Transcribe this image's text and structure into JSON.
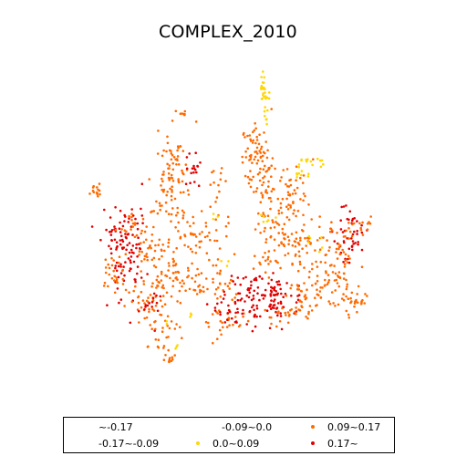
{
  "figure": {
    "title": "COMPLEX_2010"
  },
  "legend": {
    "entries": [
      {
        "label": "~-0.17",
        "color": "#8b0000",
        "visible_marker": false
      },
      {
        "label": "-0.17~-0.09",
        "color": "#b22222",
        "visible_marker": false
      },
      {
        "label": "-0.09~0.0",
        "color": "#ff8c00",
        "visible_marker": false
      },
      {
        "label": "0.0~0.09",
        "color": "#ffd700",
        "visible_marker": true
      },
      {
        "label": "0.09~0.17",
        "color": "#ff6a00",
        "visible_marker": true
      },
      {
        "label": "0.17~",
        "color": "#e00000",
        "visible_marker": true
      }
    ]
  },
  "map_colors": {
    "class_0_0_to_0_09": "#ffd700",
    "class_0_09_to_0_17": "#ff6a00",
    "class_0_17_plus": "#e00000"
  }
}
